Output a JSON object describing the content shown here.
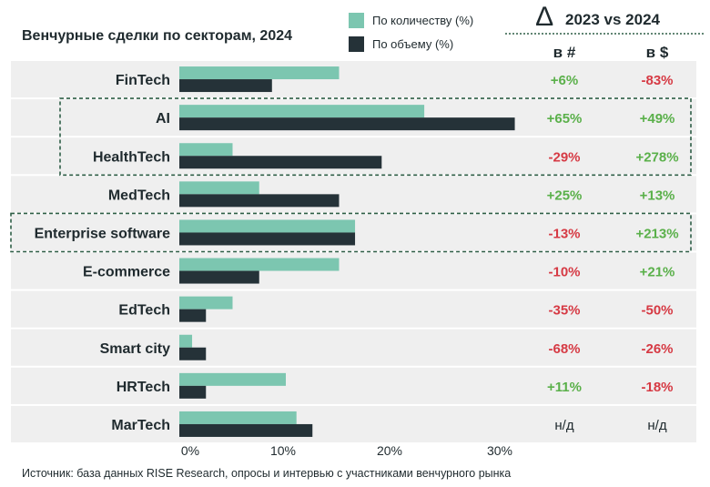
{
  "chart_data": {
    "type": "bar",
    "title": "Венчурные сделки по секторам, 2024",
    "orientation": "horizontal",
    "categories": [
      "FinTech",
      "AI",
      "HealthTech",
      "MedTech",
      "Enterprise software",
      "E-commerce",
      "EdTech",
      "Smart city",
      "HRTech",
      "MarTech"
    ],
    "series": [
      {
        "name": "По количеству (%)",
        "color": "#7cc6b0",
        "values": [
          15,
          23,
          5,
          7.5,
          16.5,
          15,
          5,
          1.2,
          10,
          11
        ]
      },
      {
        "name": "По объему (%)",
        "color": "#253238",
        "values": [
          8.7,
          31.5,
          19,
          15,
          16.5,
          7.5,
          2.5,
          2.5,
          2.5,
          12.5
        ]
      }
    ],
    "xticks": [
      "0%",
      "10%",
      "20%",
      "30%"
    ],
    "xlim": [
      0,
      32
    ],
    "legend_position": "top",
    "highlighted_categories": [
      "AI",
      "HealthTech",
      "Enterprise software"
    ],
    "comparison": {
      "title": "2023 vs 2024",
      "symbol": "∆",
      "col_count_label": "в #",
      "col_volume_label": "в $",
      "positive_color": "#5ab04a",
      "negative_color": "#d63a44",
      "rows": [
        {
          "count": "+6%",
          "volume": "-83%"
        },
        {
          "count": "+65%",
          "volume": "+49%"
        },
        {
          "count": "-29%",
          "volume": "+278%"
        },
        {
          "count": "+25%",
          "volume": "+13%"
        },
        {
          "count": "-13%",
          "volume": "+213%"
        },
        {
          "count": "-10%",
          "volume": "+21%"
        },
        {
          "count": "-35%",
          "volume": "-50%"
        },
        {
          "count": "-68%",
          "volume": "-26%"
        },
        {
          "count": "+11%",
          "volume": "-18%"
        },
        {
          "count": "н/д",
          "volume": "н/д"
        }
      ]
    },
    "source": "Источник: база данных RISE Research, опросы и интервью с участниками венчурного рынка"
  },
  "colors": {
    "row_background": "#efefef",
    "highlight_border": "#2e5e46"
  }
}
